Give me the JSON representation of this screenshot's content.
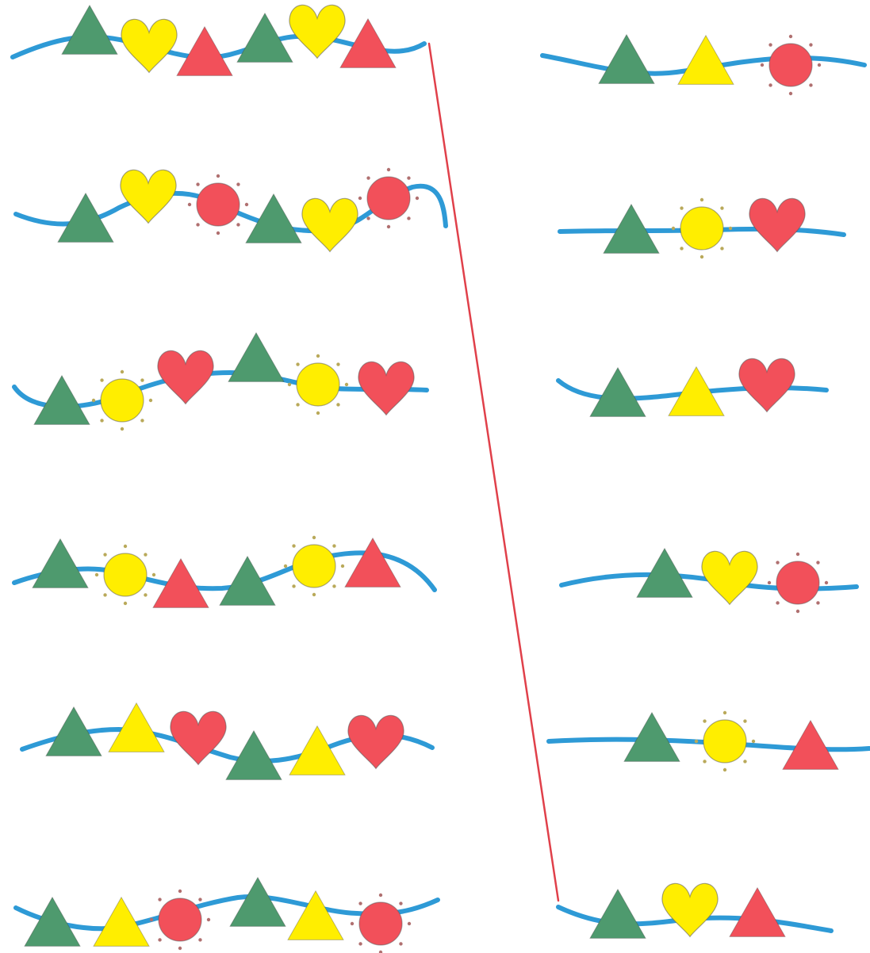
{
  "puzzle": {
    "type": "matching",
    "instruction": "",
    "colors": {
      "background": "#ffffff",
      "string": "#2e9ad6",
      "green": "#4e9a6e",
      "yellow": "#ffee00",
      "red": "#f2505a",
      "outline": "#8a8a8a",
      "sun_dot": "#b9a95a",
      "red_dot": "#b07070",
      "line": "#e0404a"
    }
  },
  "left_items": [
    {
      "id": "L1",
      "beads": [
        "green-triangle",
        "yellow-heart",
        "red-triangle",
        "green-triangle",
        "yellow-heart",
        "red-triangle"
      ]
    },
    {
      "id": "L2",
      "beads": [
        "green-triangle",
        "yellow-heart",
        "red-circle",
        "green-triangle",
        "yellow-heart",
        "red-circle"
      ]
    },
    {
      "id": "L3",
      "beads": [
        "green-triangle",
        "yellow-circle",
        "red-heart",
        "green-triangle",
        "yellow-circle",
        "red-heart"
      ]
    },
    {
      "id": "L4",
      "beads": [
        "green-triangle",
        "yellow-circle",
        "red-triangle",
        "green-triangle",
        "yellow-circle",
        "red-triangle"
      ]
    },
    {
      "id": "L5",
      "beads": [
        "green-triangle",
        "yellow-triangle",
        "red-heart",
        "green-triangle",
        "yellow-triangle",
        "red-heart"
      ]
    },
    {
      "id": "L6",
      "beads": [
        "green-triangle",
        "yellow-triangle",
        "red-circle",
        "green-triangle",
        "yellow-triangle",
        "red-circle"
      ]
    }
  ],
  "right_items": [
    {
      "id": "R1",
      "beads": [
        "green-triangle",
        "yellow-triangle",
        "red-circle"
      ]
    },
    {
      "id": "R2",
      "beads": [
        "green-triangle",
        "yellow-circle",
        "red-heart"
      ]
    },
    {
      "id": "R3",
      "beads": [
        "green-triangle",
        "yellow-triangle",
        "red-heart"
      ]
    },
    {
      "id": "R4",
      "beads": [
        "green-triangle",
        "yellow-heart",
        "red-circle"
      ]
    },
    {
      "id": "R5",
      "beads": [
        "green-triangle",
        "yellow-circle",
        "red-triangle"
      ]
    },
    {
      "id": "R6",
      "beads": [
        "green-triangle",
        "yellow-heart",
        "red-triangle"
      ]
    }
  ],
  "connections": [
    {
      "from": "L1",
      "to": "R6"
    }
  ]
}
